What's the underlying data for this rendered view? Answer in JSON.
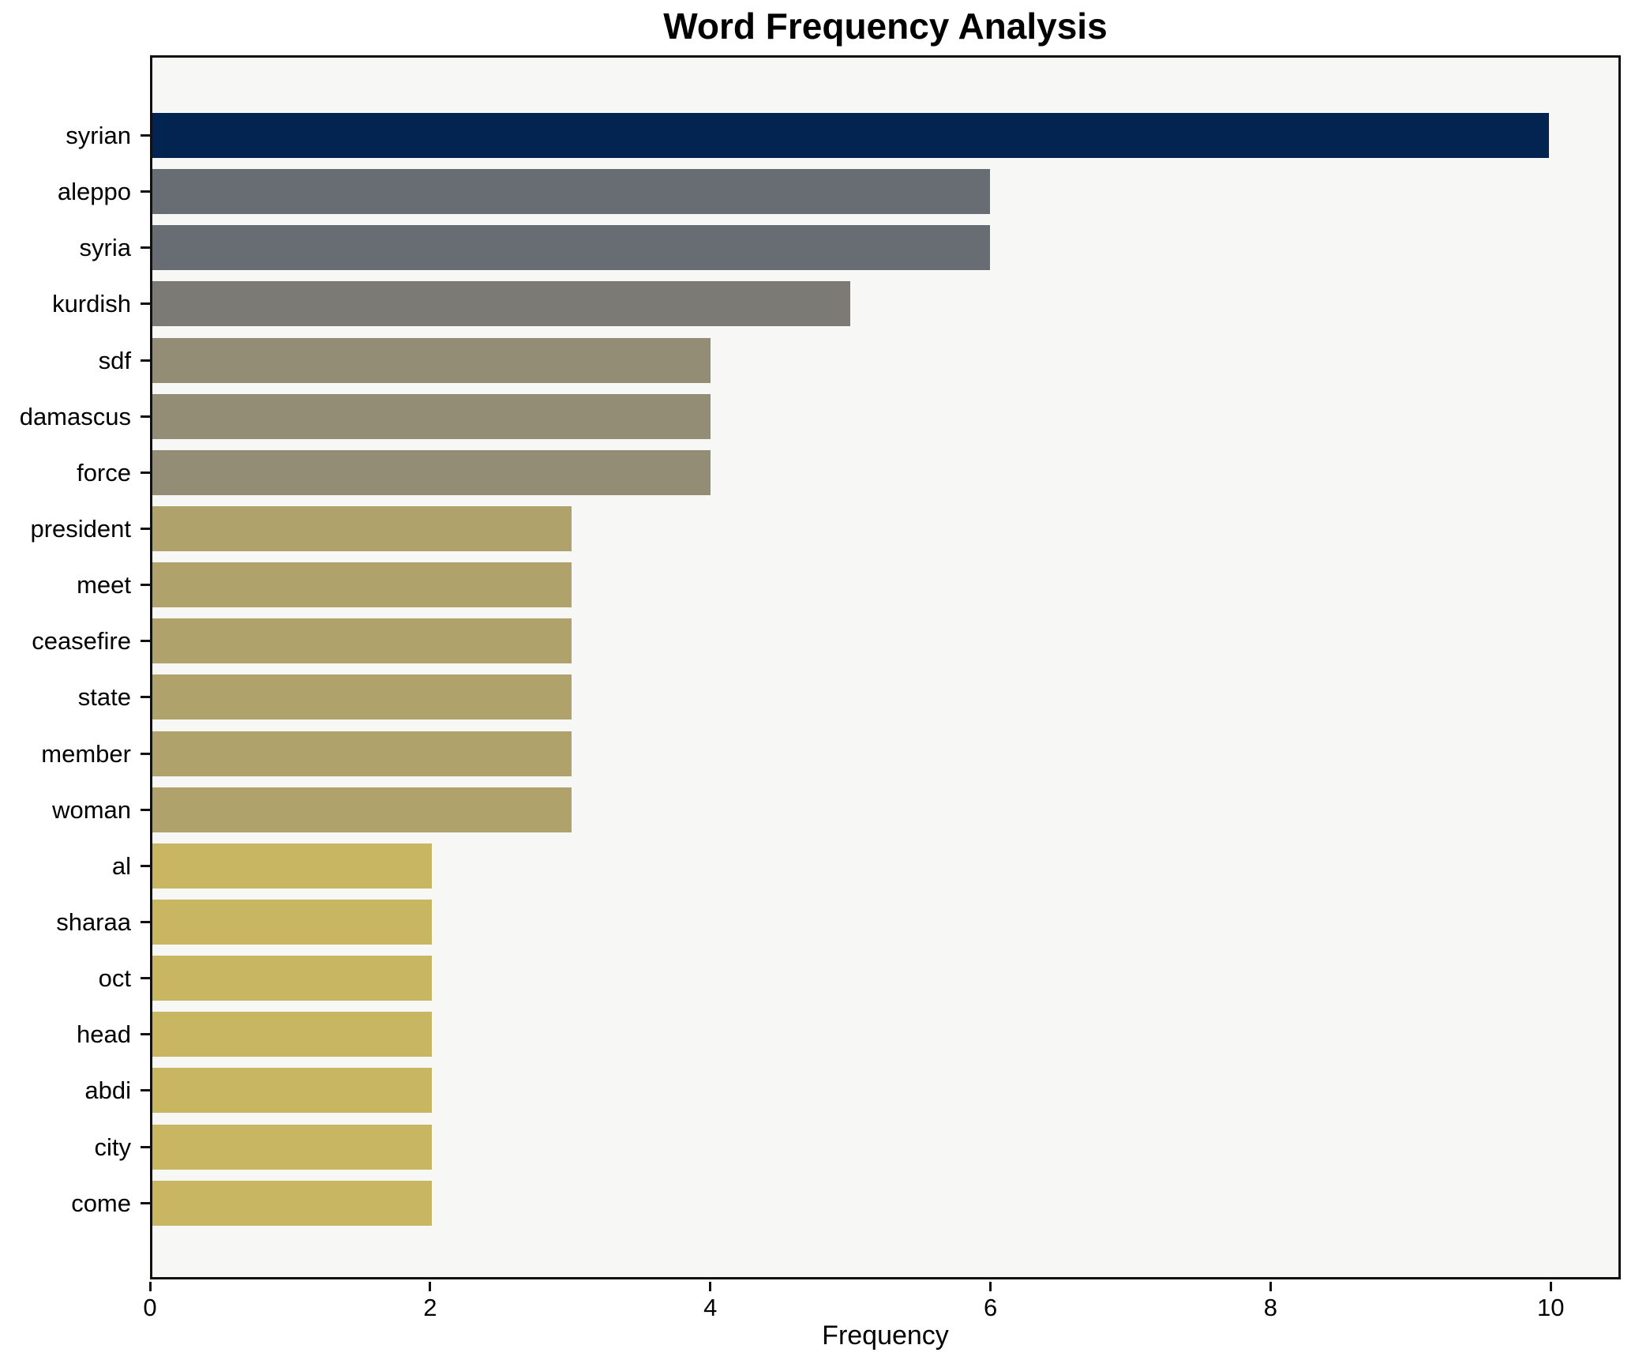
{
  "chart_data": {
    "type": "bar",
    "orientation": "horizontal",
    "title": "Word Frequency Analysis",
    "xlabel": "Frequency",
    "ylabel": "",
    "categories": [
      "syrian",
      "aleppo",
      "syria",
      "kurdish",
      "sdf",
      "damascus",
      "force",
      "president",
      "meet",
      "ceasefire",
      "state",
      "member",
      "woman",
      "al",
      "sharaa",
      "oct",
      "head",
      "abdi",
      "city",
      "come"
    ],
    "values": [
      10,
      6,
      6,
      5,
      4,
      4,
      4,
      3,
      3,
      3,
      3,
      3,
      3,
      2,
      2,
      2,
      2,
      2,
      2,
      2
    ],
    "bar_colors": [
      "#032350",
      "#686c73",
      "#686c73",
      "#7b7a75",
      "#938d76",
      "#938d76",
      "#938d76",
      "#afa26b",
      "#afa26b",
      "#afa26b",
      "#afa26b",
      "#afa26b",
      "#afa26b",
      "#c8b662",
      "#c8b662",
      "#c8b662",
      "#c8b662",
      "#c8b662",
      "#c8b662",
      "#c8b662"
    ],
    "xlim": [
      0,
      10.5
    ],
    "xticks": [
      0,
      2,
      4,
      6,
      8,
      10
    ],
    "grid": false,
    "legend_position": "none",
    "plot_background": "#f7f7f6",
    "figure_background": "#ffffff"
  }
}
